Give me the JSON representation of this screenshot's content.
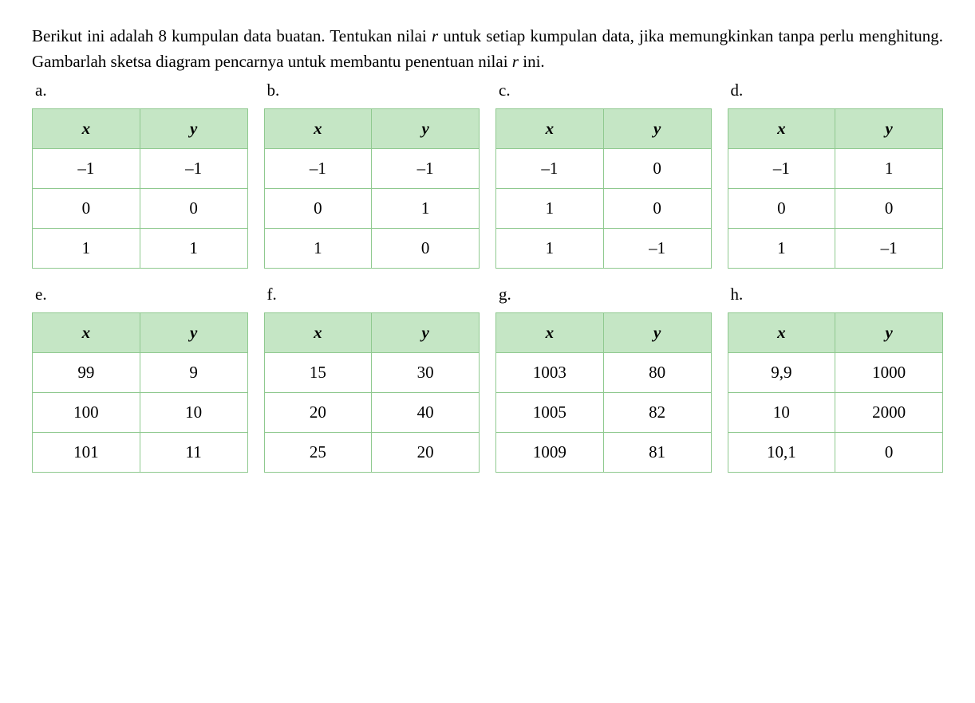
{
  "instruction": {
    "part1": "Berikut ini adalah 8 kumpulan data buatan. Tentukan nilai ",
    "var1": "r",
    "part2": " untuk setiap kumpulan data, jika memungkinkan tanpa perlu menghitung. Gambarlah sketsa diagram pencarnya untuk membantu penentuan nilai ",
    "var2": "r",
    "part3": " ini."
  },
  "labels": {
    "a": "a.",
    "b": "b.",
    "c": "c.",
    "d": "d.",
    "e": "e.",
    "f": "f.",
    "g": "g.",
    "h": "h."
  },
  "headers": {
    "x": "x",
    "y": "y"
  },
  "tables": {
    "a": {
      "rows": [
        {
          "x": "–1",
          "y": "–1"
        },
        {
          "x": "0",
          "y": "0"
        },
        {
          "x": "1",
          "y": "1"
        }
      ]
    },
    "b": {
      "rows": [
        {
          "x": "–1",
          "y": "–1"
        },
        {
          "x": "0",
          "y": "1"
        },
        {
          "x": "1",
          "y": "0"
        }
      ]
    },
    "c": {
      "rows": [
        {
          "x": "–1",
          "y": "0"
        },
        {
          "x": "1",
          "y": "0"
        },
        {
          "x": "1",
          "y": "–1"
        }
      ]
    },
    "d": {
      "rows": [
        {
          "x": "–1",
          "y": "1"
        },
        {
          "x": "0",
          "y": "0"
        },
        {
          "x": "1",
          "y": "–1"
        }
      ]
    },
    "e": {
      "rows": [
        {
          "x": "99",
          "y": "9"
        },
        {
          "x": "100",
          "y": "10"
        },
        {
          "x": "101",
          "y": "11"
        }
      ]
    },
    "f": {
      "rows": [
        {
          "x": "15",
          "y": "30"
        },
        {
          "x": "20",
          "y": "40"
        },
        {
          "x": "25",
          "y": "20"
        }
      ]
    },
    "g": {
      "rows": [
        {
          "x": "1003",
          "y": "80"
        },
        {
          "x": "1005",
          "y": "82"
        },
        {
          "x": "1009",
          "y": "81"
        }
      ]
    },
    "h": {
      "rows": [
        {
          "x": "9,9",
          "y": "1000"
        },
        {
          "x": "10",
          "y": "2000"
        },
        {
          "x": "10,1",
          "y": "0"
        }
      ]
    }
  },
  "styling": {
    "header_bg": "#c5e6c5",
    "border_color": "#8fc98f",
    "cell_bg": "#ffffff",
    "font_size": 21,
    "font_family": "Georgia, Times New Roman, serif"
  }
}
